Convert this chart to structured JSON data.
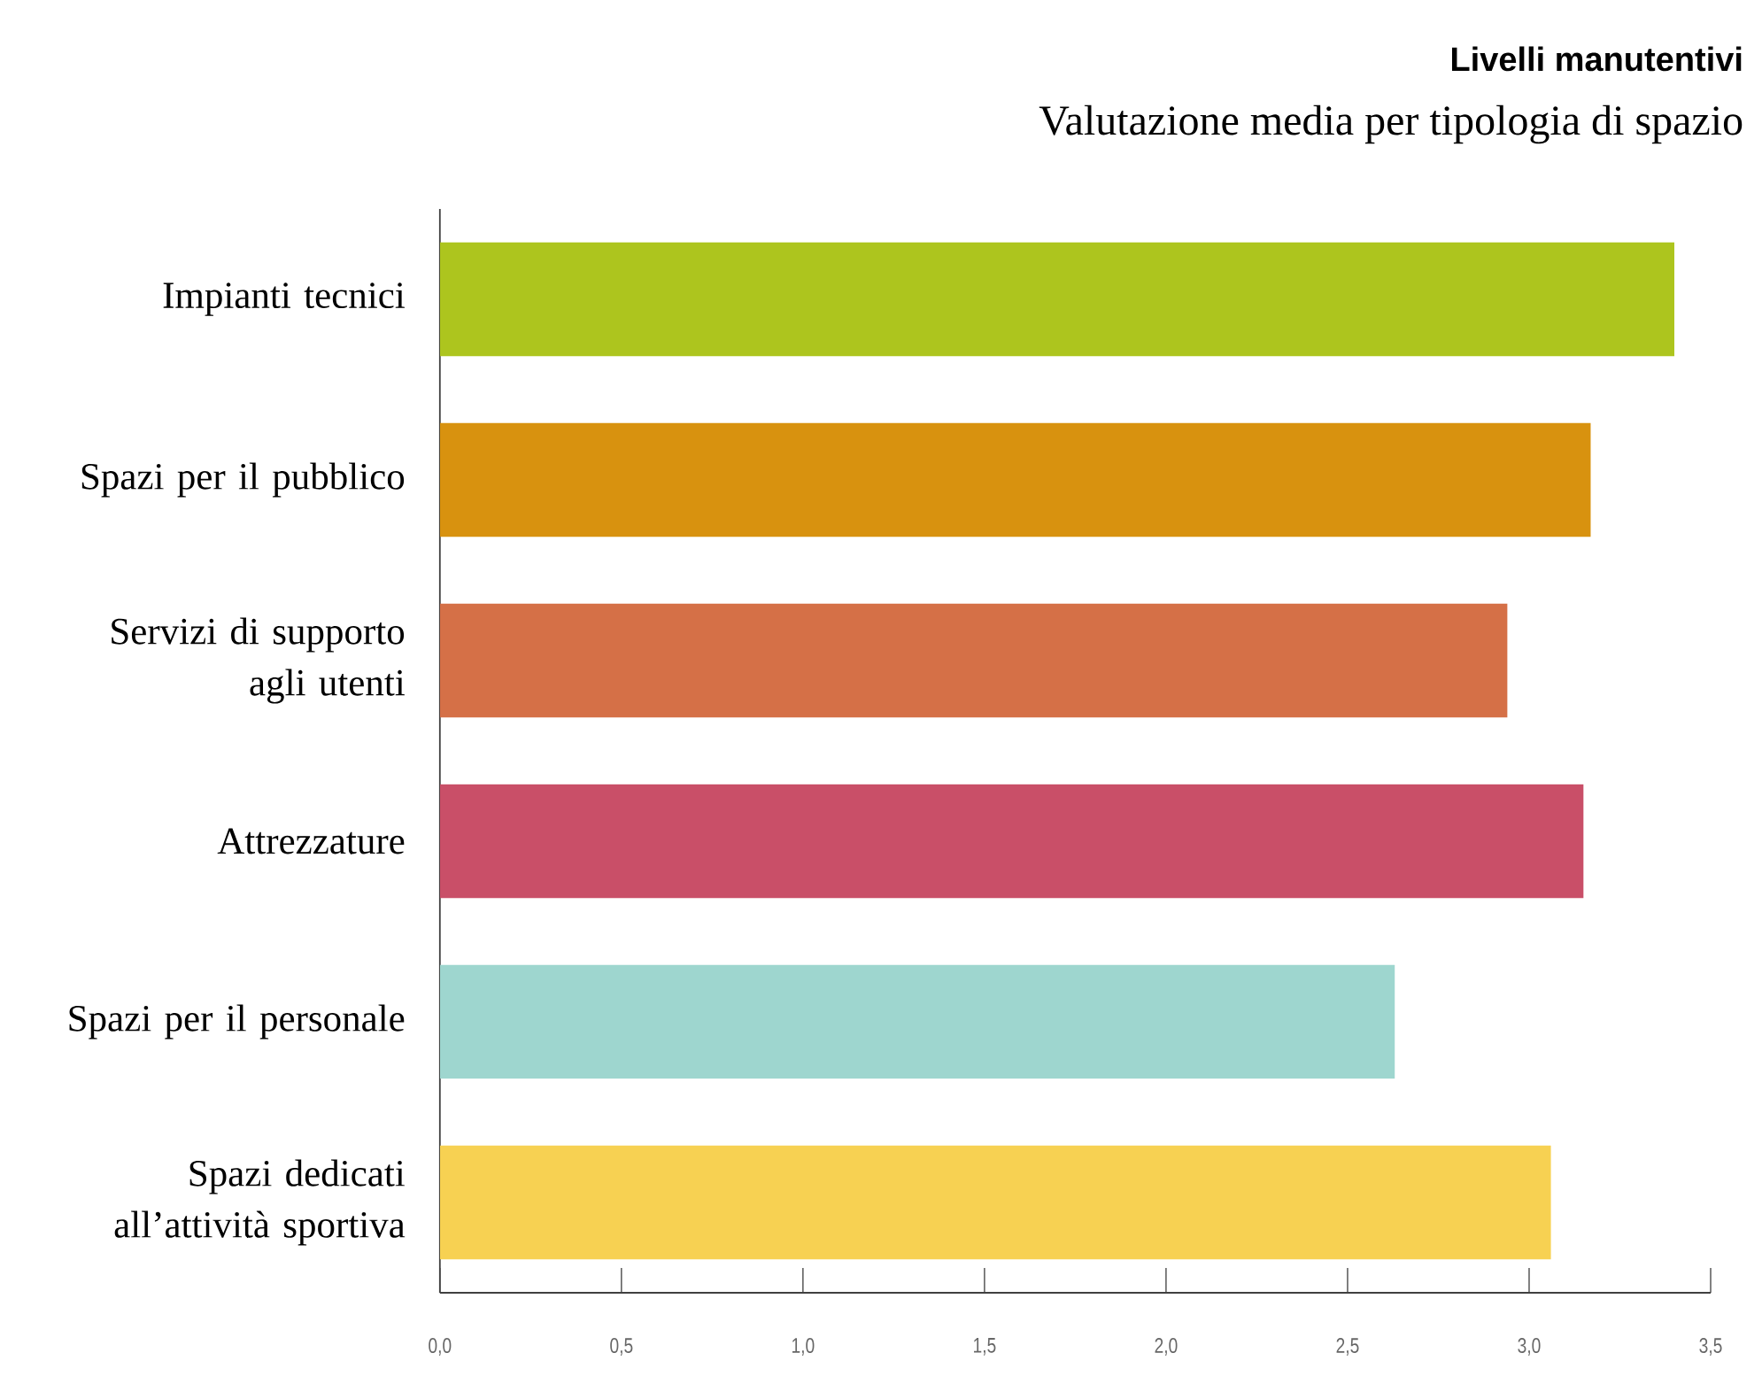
{
  "chart_data": {
    "type": "bar",
    "orientation": "horizontal",
    "title": "Livelli manutentivi",
    "subtitle": "Valutazione media per tipologia di spazio",
    "categories": [
      "Impianti tecnici",
      "Spazi per il pubblico",
      "Servizi di supporto agli utenti",
      "Attrezzature",
      "Spazi per il personale",
      "Spazi dedicati all’attività sportiva"
    ],
    "values": [
      3.4,
      3.17,
      2.94,
      3.15,
      2.63,
      3.06
    ],
    "colors": [
      "#adc51e",
      "#d8920f",
      "#d57047",
      "#c94f68",
      "#9ed6cf",
      "#f7d152"
    ],
    "xlim": [
      0,
      3.5
    ],
    "xticks": [
      {
        "value": 0,
        "label": "0,0"
      },
      {
        "value": 0.5,
        "label": "0,5"
      },
      {
        "value": 1,
        "label": "1,0"
      },
      {
        "value": 1.5,
        "label": "1,5"
      },
      {
        "value": 2,
        "label": "2,0"
      },
      {
        "value": 2.5,
        "label": "2,5"
      },
      {
        "value": 3,
        "label": "3,0"
      },
      {
        "value": 3.5,
        "label": "3,5"
      }
    ],
    "grid": false
  }
}
